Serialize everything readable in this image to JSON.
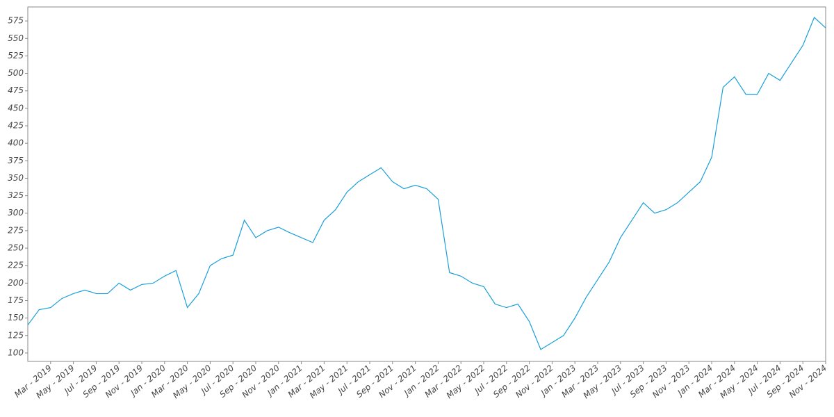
{
  "chart_data": {
    "type": "line",
    "x": [
      "2019-01",
      "2019-02",
      "2019-03",
      "2019-04",
      "2019-05",
      "2019-06",
      "2019-07",
      "2019-08",
      "2019-09",
      "2019-10",
      "2019-11",
      "2019-12",
      "2020-01",
      "2020-02",
      "2020-03",
      "2020-04",
      "2020-05",
      "2020-06",
      "2020-07",
      "2020-08",
      "2020-09",
      "2020-10",
      "2020-11",
      "2020-12",
      "2021-01",
      "2021-02",
      "2021-03",
      "2021-04",
      "2021-05",
      "2021-06",
      "2021-07",
      "2021-08",
      "2021-09",
      "2021-10",
      "2021-11",
      "2021-12",
      "2022-01",
      "2022-02",
      "2022-03",
      "2022-04",
      "2022-05",
      "2022-06",
      "2022-07",
      "2022-08",
      "2022-09",
      "2022-10",
      "2022-11",
      "2022-12",
      "2023-01",
      "2023-02",
      "2023-03",
      "2023-04",
      "2023-05",
      "2023-06",
      "2023-07",
      "2023-08",
      "2023-09",
      "2023-10",
      "2023-11",
      "2023-12",
      "2024-01",
      "2024-02",
      "2024-03",
      "2024-04",
      "2024-05",
      "2024-06",
      "2024-07",
      "2024-08",
      "2024-09",
      "2024-10",
      "2024-11"
    ],
    "series": [
      {
        "color": "#1a9fd9",
        "values": [
          140,
          162,
          165,
          178,
          185,
          190,
          185,
          185,
          200,
          190,
          198,
          200,
          210,
          218,
          165,
          185,
          225,
          235,
          240,
          290,
          265,
          275,
          280,
          272,
          265,
          258,
          290,
          305,
          330,
          345,
          355,
          365,
          345,
          335,
          340,
          335,
          320,
          215,
          210,
          200,
          195,
          170,
          165,
          170,
          145,
          105,
          115,
          125,
          150,
          180,
          205,
          230,
          265,
          290,
          315,
          300,
          305,
          315,
          330,
          345,
          380,
          480,
          495,
          470,
          470,
          500,
          490,
          515,
          540,
          580,
          565
        ]
      }
    ],
    "xlim": [
      "2019-01",
      "2024-11"
    ],
    "ylim": [
      88,
      595
    ],
    "yticks": [
      100,
      125,
      150,
      175,
      200,
      225,
      250,
      275,
      300,
      325,
      350,
      375,
      400,
      425,
      450,
      475,
      500,
      525,
      550,
      575
    ],
    "xticks": [
      {
        "value": "2019-03",
        "label": "Mar - 2019"
      },
      {
        "value": "2019-05",
        "label": "May - 2019"
      },
      {
        "value": "2019-07",
        "label": "Jul - 2019"
      },
      {
        "value": "2019-09",
        "label": "Sep - 2019"
      },
      {
        "value": "2019-11",
        "label": "Nov - 2019"
      },
      {
        "value": "2020-01",
        "label": "Jan - 2020"
      },
      {
        "value": "2020-03",
        "label": "Mar - 2020"
      },
      {
        "value": "2020-05",
        "label": "May - 2020"
      },
      {
        "value": "2020-07",
        "label": "Jul - 2020"
      },
      {
        "value": "2020-09",
        "label": "Sep - 2020"
      },
      {
        "value": "2020-11",
        "label": "Nov - 2020"
      },
      {
        "value": "2021-01",
        "label": "Jan - 2021"
      },
      {
        "value": "2021-03",
        "label": "Mar - 2021"
      },
      {
        "value": "2021-05",
        "label": "May - 2021"
      },
      {
        "value": "2021-07",
        "label": "Jul - 2021"
      },
      {
        "value": "2021-09",
        "label": "Sep - 2021"
      },
      {
        "value": "2021-11",
        "label": "Nov - 2021"
      },
      {
        "value": "2022-01",
        "label": "Jan - 2022"
      },
      {
        "value": "2022-03",
        "label": "Mar - 2022"
      },
      {
        "value": "2022-05",
        "label": "May - 2022"
      },
      {
        "value": "2022-07",
        "label": "Jul - 2022"
      },
      {
        "value": "2022-09",
        "label": "Sep - 2022"
      },
      {
        "value": "2022-11",
        "label": "Nov - 2022"
      },
      {
        "value": "2023-01",
        "label": "Jan - 2023"
      },
      {
        "value": "2023-03",
        "label": "Mar - 2023"
      },
      {
        "value": "2023-05",
        "label": "May - 2023"
      },
      {
        "value": "2023-07",
        "label": "Jul - 2023"
      },
      {
        "value": "2023-09",
        "label": "Sep - 2023"
      },
      {
        "value": "2023-11",
        "label": "Nov - 2023"
      },
      {
        "value": "2024-01",
        "label": "Jan - 2024"
      },
      {
        "value": "2024-03",
        "label": "Mar - 2024"
      },
      {
        "value": "2024-05",
        "label": "May - 2024"
      },
      {
        "value": "2024-07",
        "label": "Jul - 2024"
      },
      {
        "value": "2024-09",
        "label": "Sep - 2024"
      },
      {
        "value": "2024-11",
        "label": "Nov - 2024"
      }
    ],
    "grid": false
  }
}
